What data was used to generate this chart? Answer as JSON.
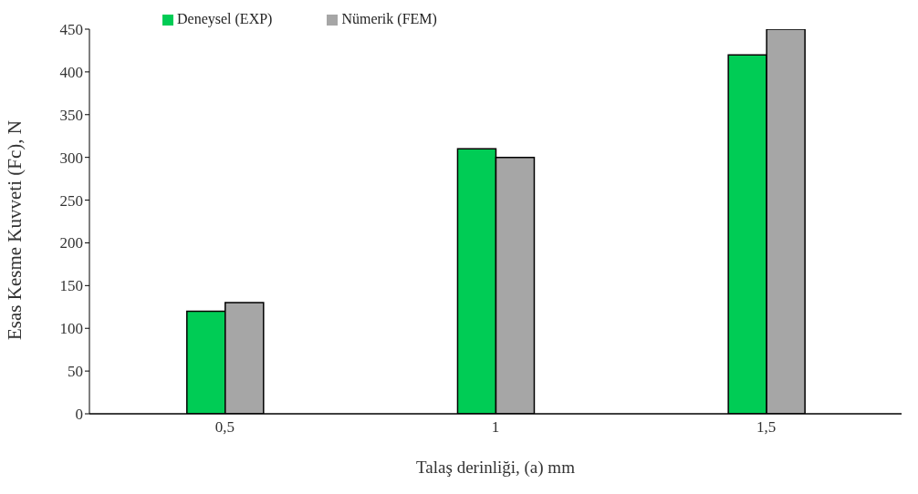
{
  "chart_data": {
    "type": "bar",
    "xlabel": "Talaş derinliği, (a) mm",
    "ylabel": "Esas Kesme Kuvveti (Fc), N",
    "categories": [
      "0,5",
      "1",
      "1,5"
    ],
    "series": [
      {
        "name": "Deneysel (EXP)",
        "color": "#00cc55",
        "values": [
          120,
          310,
          420
        ]
      },
      {
        "name": "Nümerik (FEM)",
        "color": "#a6a6a6",
        "values": [
          130,
          300,
          450
        ]
      }
    ],
    "ylim": [
      0,
      450
    ],
    "yticks": [
      0,
      50,
      100,
      150,
      200,
      250,
      300,
      350,
      400,
      450
    ],
    "grid": false,
    "legend": "top left"
  }
}
